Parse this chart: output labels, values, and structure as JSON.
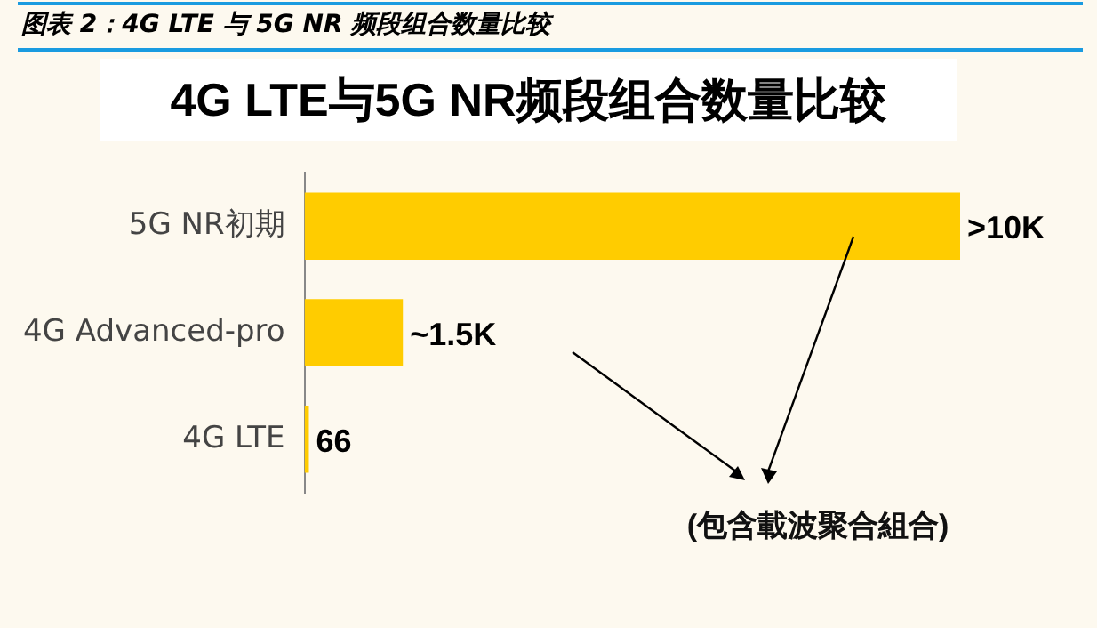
{
  "chart_data": {
    "type": "bar",
    "orientation": "horizontal",
    "title": "图表 2：4G LTE 与 5G NR 频段组合数量比较",
    "subtitle": "4G LTE与5G NR频段组合数量比较",
    "categories": [
      "5G NR初期",
      "4G Advanced-pro",
      "4G LTE"
    ],
    "values": [
      10000,
      1500,
      66
    ],
    "color": "#ffcc00",
    "xlim": [
      0,
      10000
    ],
    "tick_labels": "y",
    "value_labels": [
      ">10K",
      "~1.5K",
      "66"
    ],
    "annotations": [
      "(包含載波聚合組合)"
    ],
    "legend": false,
    "grid": false
  }
}
